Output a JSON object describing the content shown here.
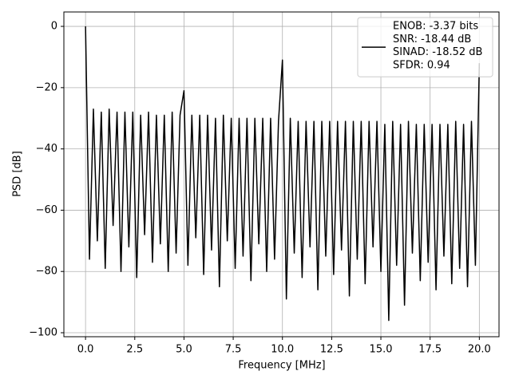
{
  "chart_data": {
    "type": "line",
    "xlabel": "Frequency [MHz]",
    "ylabel": "PSD [dB]",
    "xlim": [
      -1.1,
      21.0
    ],
    "ylim": [
      -101.3,
      4.7
    ],
    "xticks": [
      {
        "value": 0,
        "label": "0.0"
      },
      2.5,
      {
        "value": 5,
        "label": "5.0"
      },
      7.5,
      {
        "value": 10,
        "label": "10.0"
      },
      12.5,
      {
        "value": 15,
        "label": "15.0"
      },
      17.5,
      {
        "value": 20,
        "label": "20.0"
      }
    ],
    "yticks": [
      {
        "value": -100,
        "label": "−100"
      },
      {
        "value": -80,
        "label": "−80"
      },
      {
        "value": -60,
        "label": "−60"
      },
      {
        "value": -40,
        "label": "−40"
      },
      {
        "value": -20,
        "label": "−20"
      },
      0
    ],
    "grid": true,
    "legend": "upper right",
    "series": [
      {
        "name": [
          "ENOB: -3.37 bits",
          "SNR: -18.44 dB",
          "SINAD: -18.52 dB",
          "SFDR: 0.94"
        ],
        "color": "#000000",
        "x": [
          0,
          0.2,
          0.4,
          0.6,
          0.8,
          1,
          1.2,
          1.4,
          1.6,
          1.8,
          2,
          2.2,
          2.4,
          2.6,
          2.8,
          3,
          3.2,
          3.4,
          3.6,
          3.8,
          4,
          4.2,
          4.4,
          4.6,
          4.8,
          5,
          5.2,
          5.4,
          5.6,
          5.8,
          6,
          6.2,
          6.4,
          6.6,
          6.8,
          7,
          7.2,
          7.4,
          7.6,
          7.8,
          8,
          8.2,
          8.4,
          8.6,
          8.8,
          9,
          9.2,
          9.4,
          9.6,
          9.8,
          10,
          10.2,
          10.4,
          10.6,
          10.8,
          11,
          11.2,
          11.4,
          11.6,
          11.8,
          12,
          12.2,
          12.4,
          12.6,
          12.8,
          13,
          13.2,
          13.4,
          13.6,
          13.8,
          14,
          14.2,
          14.4,
          14.6,
          14.8,
          15,
          15.2,
          15.4,
          15.6,
          15.8,
          16,
          16.2,
          16.4,
          16.6,
          16.8,
          17,
          17.2,
          17.4,
          17.6,
          17.8,
          18,
          18.2,
          18.4,
          18.6,
          18.8,
          19,
          19.2,
          19.4,
          19.6,
          19.8,
          20
        ],
        "values": [
          0,
          -76,
          -27,
          -70,
          -28,
          -79,
          -27,
          -65,
          -28,
          -80,
          -28,
          -72,
          -28,
          -82,
          -29,
          -68,
          -28,
          -77,
          -29,
          -71,
          -29,
          -80,
          -28,
          -74,
          -29,
          -21,
          -78,
          -29,
          -69,
          -29,
          -81,
          -29,
          -73,
          -30,
          -85,
          -29,
          -70,
          -30,
          -79,
          -30,
          -75,
          -30,
          -83,
          -30,
          -71,
          -30,
          -80,
          -30,
          -76,
          -31,
          -11,
          -89,
          -30,
          -74,
          -31,
          -82,
          -31,
          -72,
          -31,
          -86,
          -31,
          -75,
          -31,
          -81,
          -31,
          -73,
          -31,
          -88,
          -31,
          -76,
          -31,
          -84,
          -31,
          -72,
          -31,
          -80,
          -32,
          -96,
          -31,
          -78,
          -32,
          -91,
          -31,
          -74,
          -32,
          -83,
          -32,
          -77,
          -32,
          -86,
          -32,
          -75,
          -32,
          -84,
          -31,
          -79,
          -32,
          -85,
          -31,
          -78,
          -12
        ]
      }
    ]
  }
}
